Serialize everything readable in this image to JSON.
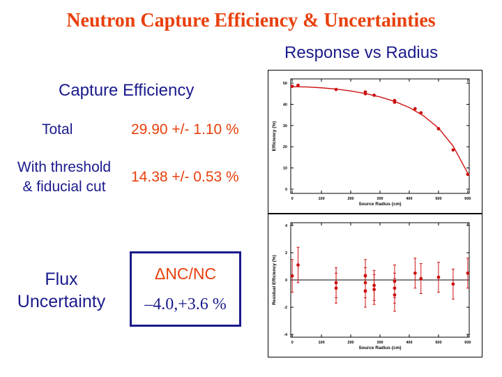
{
  "page": {
    "title": "Neutron Capture Efficiency  & Uncertainties",
    "subtitle": "Response vs Radius",
    "section_heading": "Capture Efficiency",
    "total_label": "Total",
    "total_value": "29.90 +/- 1.10 %",
    "threshold_label_1": "With threshold",
    "threshold_label_2": "& fiducial cut",
    "threshold_value": "14.38 +/- 0.53 %",
    "flux_label_1": "Flux",
    "flux_label_2": "Uncertainty",
    "box_heading": "ΔNC/NC",
    "box_value": "–4.0,+3.6 %"
  },
  "colors": {
    "title": "#e8400c",
    "navy": "#1a1a8c",
    "data": "#cc1111",
    "axis": "#000000"
  },
  "chart_data": [
    {
      "type": "scatter",
      "xlabel": "Source Radius (cm)",
      "ylabel": "Efficiency (%)",
      "xlim": [
        -5,
        605
      ],
      "ylim": [
        -2,
        52
      ],
      "xticks": [
        0,
        100,
        200,
        300,
        400,
        500,
        600
      ],
      "yticks": [
        0,
        10,
        20,
        30,
        40,
        50
      ],
      "series": [
        {
          "x": [
            0,
            20,
            150,
            250,
            250,
            280,
            350,
            350,
            420,
            440,
            500,
            550,
            600
          ],
          "y": [
            48.5,
            49.0,
            47.0,
            45.8,
            45.0,
            44.3,
            41.8,
            41.0,
            37.9,
            36.0,
            28.5,
            18.5,
            7.0
          ]
        }
      ],
      "fit": {
        "x": [
          0,
          50,
          100,
          150,
          200,
          250,
          300,
          350,
          400,
          450,
          500,
          550,
          600
        ],
        "y": [
          48.3,
          48.2,
          47.8,
          47.2,
          46.3,
          45.1,
          43.5,
          41.4,
          38.5,
          34.5,
          28.8,
          20.3,
          7.5
        ]
      }
    },
    {
      "type": "scatter",
      "xlabel": "Source Radius (cm)",
      "ylabel": "Residual Efficiency (%)",
      "xlim": [
        -5,
        605
      ],
      "ylim": [
        -4.2,
        4.2
      ],
      "xticks": [
        0,
        100,
        200,
        300,
        400,
        500,
        600
      ],
      "yticks": [
        -4,
        -2,
        0,
        2,
        4
      ],
      "reference_line": 0,
      "series": [
        {
          "x": [
            0,
            20,
            150,
            150,
            250,
            250,
            250,
            280,
            280,
            350,
            350,
            350,
            420,
            440,
            500,
            550,
            600
          ],
          "y": [
            0.3,
            1.1,
            -0.2,
            -0.6,
            0.3,
            -0.2,
            -0.8,
            -0.4,
            -0.7,
            -0.1,
            -0.6,
            -1.1,
            0.5,
            0.1,
            0.2,
            -0.3,
            0.5
          ],
          "err": [
            1.2,
            1.3,
            1.1,
            1.1,
            1.2,
            1.1,
            1.2,
            1.1,
            1.1,
            1.2,
            1.1,
            1.2,
            1.1,
            1.1,
            1.1,
            1.1,
            1.1
          ]
        }
      ]
    }
  ]
}
